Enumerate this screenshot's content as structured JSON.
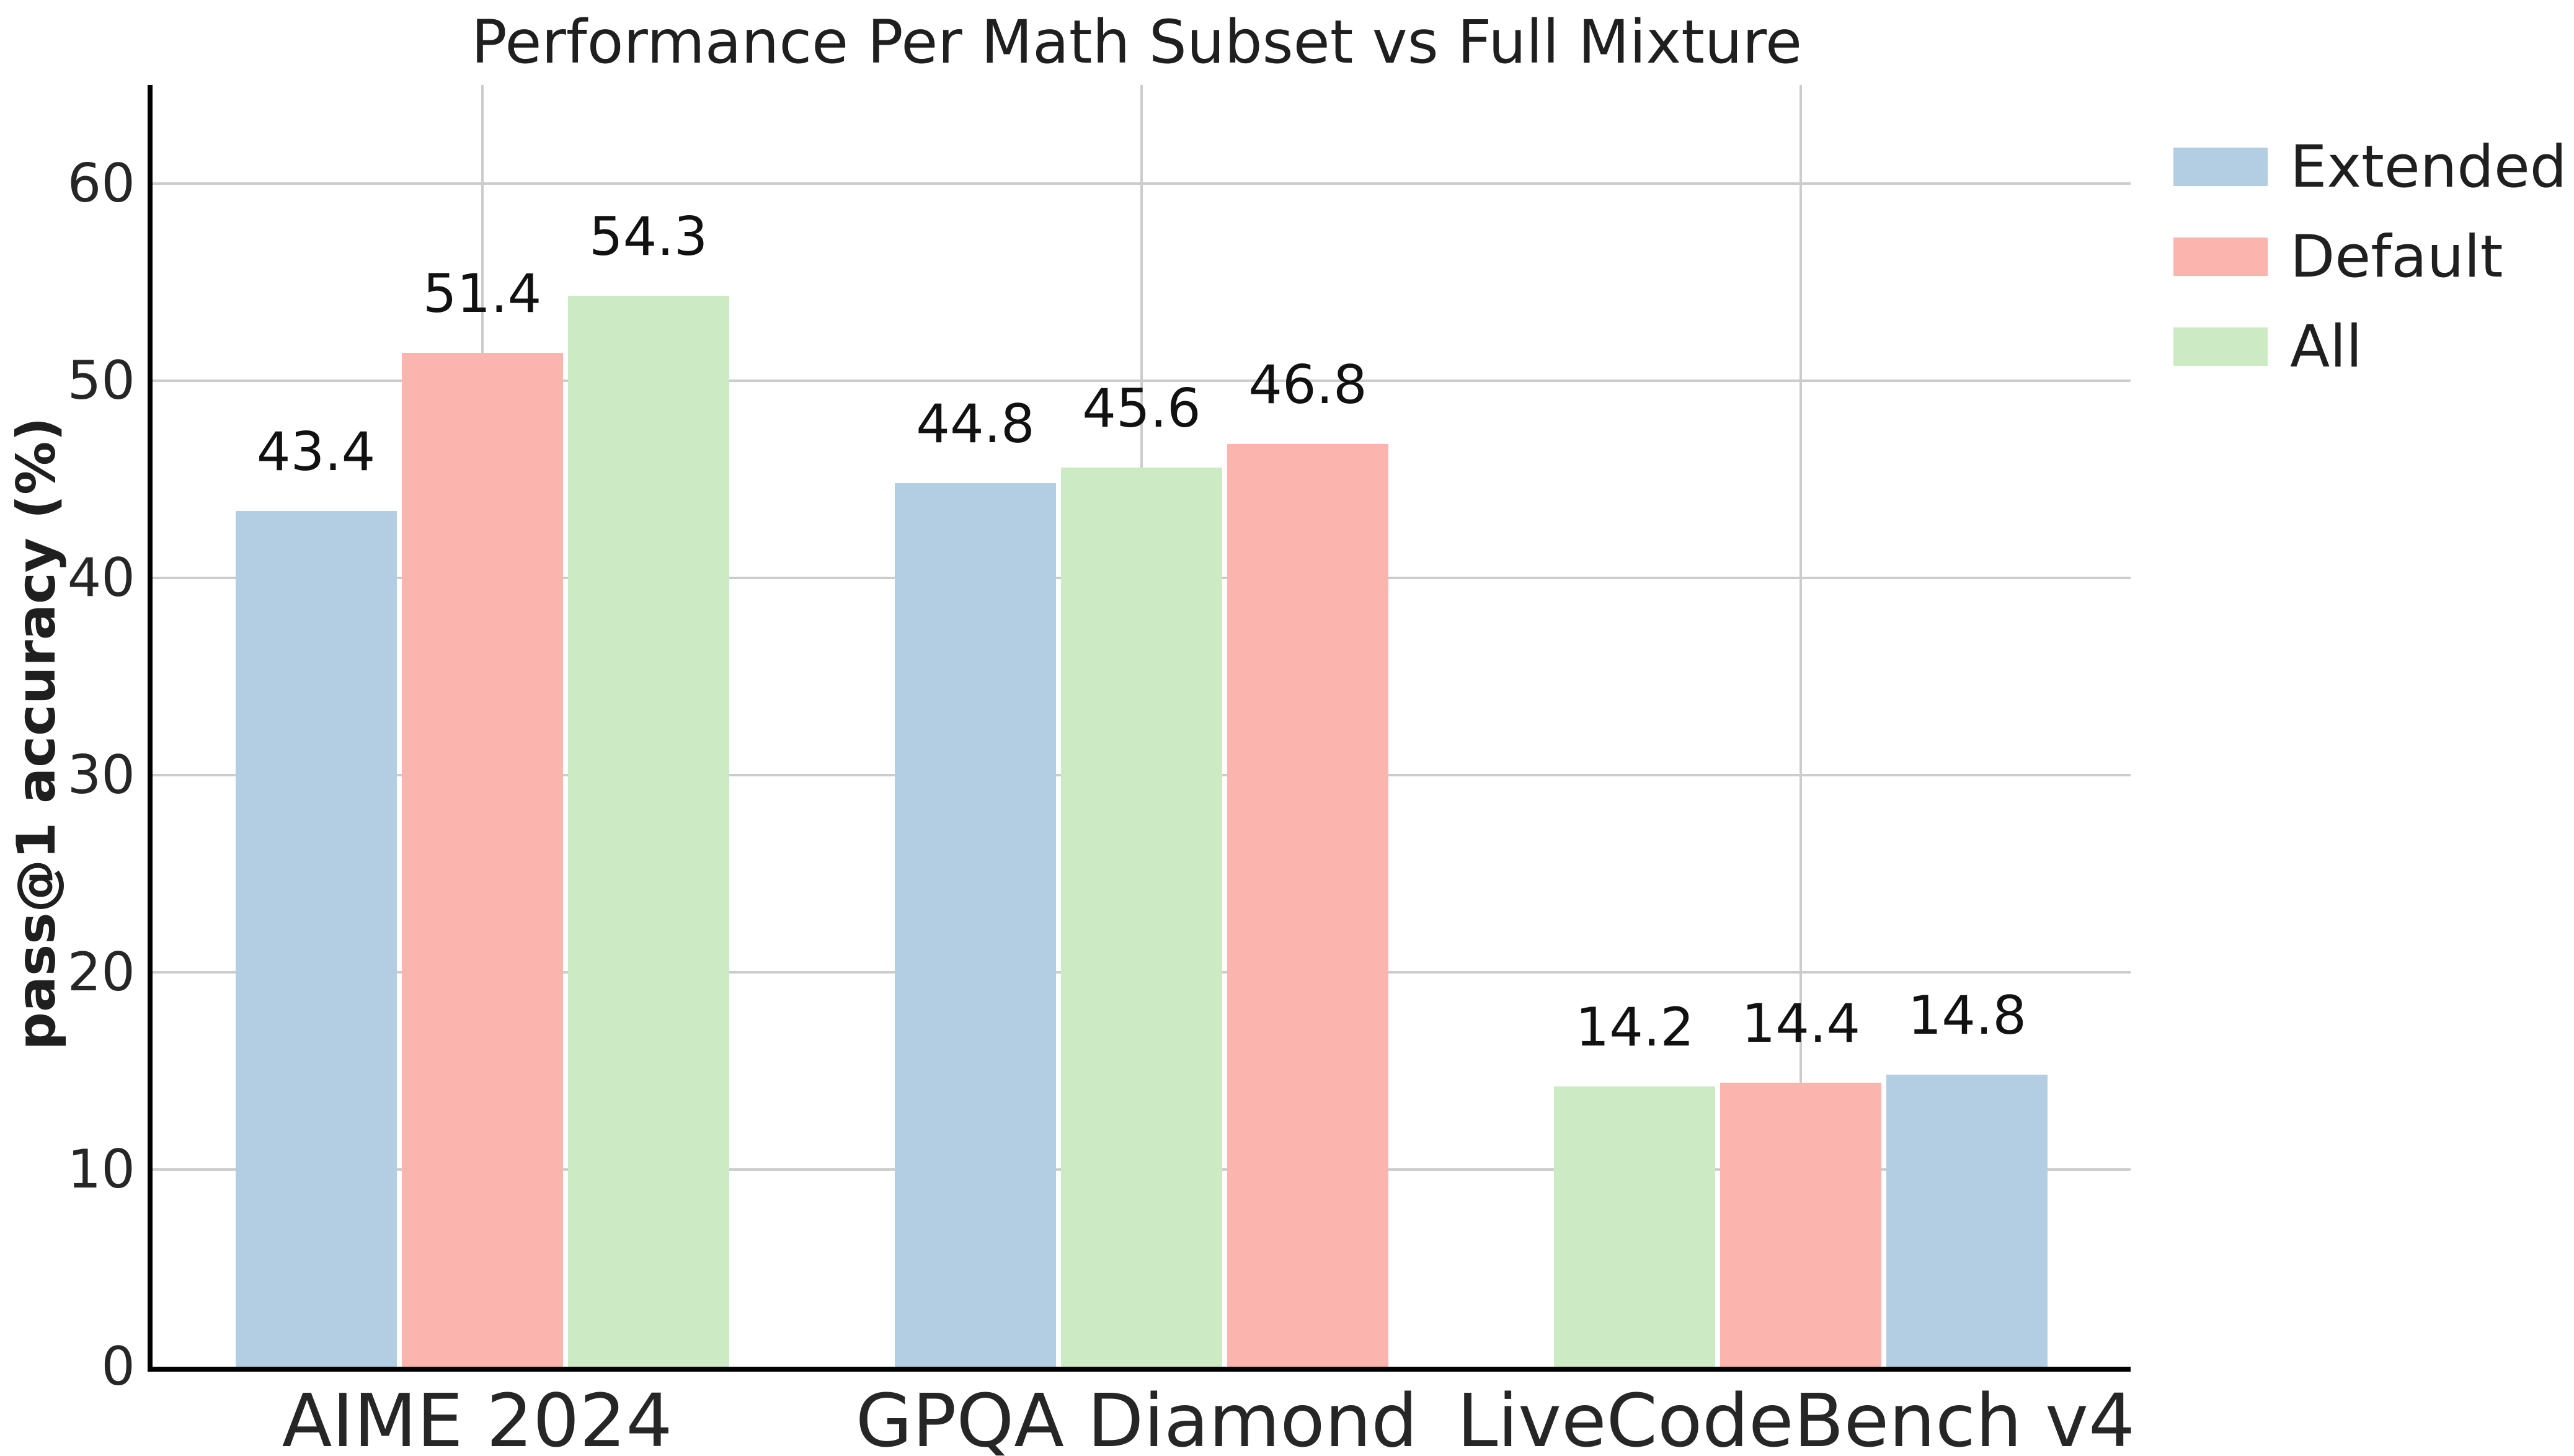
{
  "figure": {
    "title": "Performance Per Math Subset vs Full Mixture",
    "y_axis_label": "pass@1 accuracy (%)"
  },
  "legend": {
    "items": [
      {
        "label": "Extended",
        "color": "#b3cde3"
      },
      {
        "label": "Default",
        "color": "#fbb4ae"
      },
      {
        "label": "All",
        "color": "#ccebc5"
      }
    ]
  },
  "chart_data": {
    "type": "bar",
    "title": "Performance Per Math Subset vs Full Mixture",
    "xlabel": "",
    "ylabel": "pass@1 accuracy (%)",
    "ylim": [
      0,
      65
    ],
    "yticks": [
      0,
      10,
      20,
      30,
      40,
      50,
      60
    ],
    "grid": "light gray horizontal lines at yticks and vertical lines at category centers, drawn behind bars",
    "legend_position": "outside upper right",
    "categories": [
      "AIME 2024",
      "GPQA Diamond",
      "LiveCodeBench v4"
    ],
    "series": [
      {
        "name": "Extended",
        "color": "#b3cde3",
        "values": [
          43.4,
          44.8,
          14.8
        ]
      },
      {
        "name": "Default",
        "color": "#fbb4ae",
        "values": [
          51.4,
          46.8,
          14.4
        ]
      },
      {
        "name": "All",
        "color": "#ccebc5",
        "values": [
          54.3,
          45.6,
          14.2
        ]
      }
    ],
    "bar_labels_shown": true,
    "bar_order_per_category": [
      [
        "Extended",
        "Default",
        "All"
      ],
      [
        "Extended",
        "All",
        "Default"
      ],
      [
        "All",
        "Default",
        "Extended"
      ]
    ]
  },
  "style": {
    "background": "#ffffff",
    "grid_color": "#cccccc",
    "spine_color": "#000000",
    "text_color": "#262626"
  }
}
